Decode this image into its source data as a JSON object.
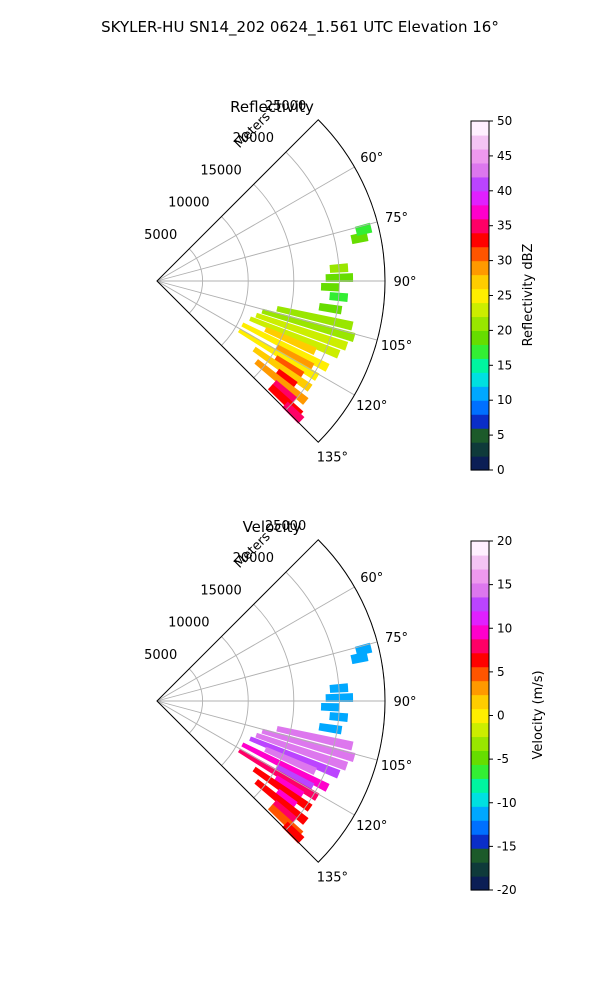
{
  "figure": {
    "title": "SKYLER-HU  SN14_202  0624_1.561 UTC Elevation 16°"
  },
  "chart_data": [
    {
      "type": "heatmap",
      "subtype": "polar-sector",
      "title": "Reflectivity",
      "radial_label": "Meters",
      "r_ticks": [
        5000,
        10000,
        15000,
        20000,
        25000
      ],
      "r_max": 25000,
      "theta_ticks": [
        "60°",
        "75°",
        "90°",
        "105°",
        "120°",
        "135°"
      ],
      "theta_values": [
        60,
        75,
        90,
        105,
        120,
        135
      ],
      "theta_range": [
        45,
        135
      ],
      "grid": true,
      "colorbar": {
        "label": "Reflectivity dBZ",
        "range": [
          0,
          50
        ],
        "ticks": [
          0,
          5,
          10,
          15,
          20,
          25,
          30,
          35,
          40,
          45,
          50
        ],
        "colors": [
          "#0b1e55",
          "#0f3a3a",
          "#1c5a2a",
          "#0a2ec8",
          "#0070ff",
          "#00a8ff",
          "#00e0e0",
          "#00f5a0",
          "#33ee33",
          "#66dd00",
          "#99e600",
          "#ccee00",
          "#ffee00",
          "#ffcc00",
          "#ff9900",
          "#ff5500",
          "#ff0000",
          "#ff0066",
          "#ff00cc",
          "#e020ff",
          "#bb44ff",
          "#dd77ee",
          "#ee99ee",
          "#f4c4f4",
          "#fff0ff"
        ]
      },
      "echoes": [
        {
          "az": 78,
          "r0": 21800,
          "r1": 23600,
          "v": 18
        },
        {
          "az": 76,
          "r0": 22500,
          "r1": 24200,
          "v": 16
        },
        {
          "az": 89,
          "r0": 18500,
          "r1": 21500,
          "v": 19
        },
        {
          "az": 86,
          "r0": 19000,
          "r1": 21000,
          "v": 20
        },
        {
          "az": 92,
          "r0": 18000,
          "r1": 20000,
          "v": 18
        },
        {
          "az": 95,
          "r0": 19000,
          "r1": 21000,
          "v": 17
        },
        {
          "az": 99,
          "r0": 18000,
          "r1": 20500,
          "v": 18
        },
        {
          "az": 103,
          "r0": 13500,
          "r1": 22000,
          "v": 20
        },
        {
          "az": 106,
          "r0": 12000,
          "r1": 22500,
          "v": 21
        },
        {
          "az": 109,
          "r0": 11500,
          "r1": 22000,
          "v": 22
        },
        {
          "az": 112,
          "r0": 11000,
          "r1": 21500,
          "v": 23
        },
        {
          "az": 114,
          "r0": 13000,
          "r1": 19000,
          "v": 26
        },
        {
          "az": 117,
          "r0": 10500,
          "r1": 21000,
          "v": 24
        },
        {
          "az": 119,
          "r0": 15000,
          "r1": 19500,
          "v": 28
        },
        {
          "az": 121,
          "r0": 10500,
          "r1": 20500,
          "v": 25
        },
        {
          "az": 123,
          "r0": 15500,
          "r1": 19000,
          "v": 30
        },
        {
          "az": 125,
          "r0": 13000,
          "r1": 20500,
          "v": 27
        },
        {
          "az": 127,
          "r0": 16500,
          "r1": 19000,
          "v": 33
        },
        {
          "az": 129,
          "r0": 14000,
          "r1": 21000,
          "v": 29
        },
        {
          "az": 131,
          "r0": 17000,
          "r1": 20000,
          "v": 34
        },
        {
          "az": 133,
          "r0": 17000,
          "r1": 21500,
          "v": 32
        },
        {
          "az": 134,
          "r0": 19500,
          "r1": 22000,
          "v": 35
        }
      ]
    },
    {
      "type": "heatmap",
      "subtype": "polar-sector",
      "title": "Velocity",
      "radial_label": "Meters",
      "r_ticks": [
        5000,
        10000,
        15000,
        20000,
        25000
      ],
      "r_max": 25000,
      "theta_ticks": [
        "60°",
        "75°",
        "90°",
        "105°",
        "120°",
        "135°"
      ],
      "theta_values": [
        60,
        75,
        90,
        105,
        120,
        135
      ],
      "theta_range": [
        45,
        135
      ],
      "grid": true,
      "colorbar": {
        "label": "Velocity (m/s)",
        "range": [
          -20,
          20
        ],
        "ticks": [
          -20,
          -15,
          -10,
          -5,
          0,
          5,
          10,
          15,
          20
        ],
        "colors": [
          "#0b1e55",
          "#0f3a3a",
          "#1c5a2a",
          "#0a2ec8",
          "#0070ff",
          "#00a8ff",
          "#00e0e0",
          "#00f5a0",
          "#33ee33",
          "#66dd00",
          "#99e600",
          "#ccee00",
          "#ffee00",
          "#ffcc00",
          "#ff9900",
          "#ff5500",
          "#ff0000",
          "#ff0066",
          "#ff00cc",
          "#e020ff",
          "#bb44ff",
          "#dd77ee",
          "#ee99ee",
          "#f4c4f4",
          "#fff0ff"
        ]
      },
      "echoes": [
        {
          "az": 78,
          "r0": 21800,
          "r1": 23600,
          "v": -12
        },
        {
          "az": 76,
          "r0": 22500,
          "r1": 24200,
          "v": -11
        },
        {
          "az": 89,
          "r0": 18500,
          "r1": 21500,
          "v": -12
        },
        {
          "az": 86,
          "r0": 19000,
          "r1": 21000,
          "v": -12
        },
        {
          "az": 92,
          "r0": 18000,
          "r1": 20000,
          "v": -11
        },
        {
          "az": 95,
          "r0": 19000,
          "r1": 21000,
          "v": -12
        },
        {
          "az": 99,
          "r0": 18000,
          "r1": 20500,
          "v": -12
        },
        {
          "az": 103,
          "r0": 13500,
          "r1": 22000,
          "v": 14
        },
        {
          "az": 106,
          "r0": 12000,
          "r1": 22500,
          "v": 15
        },
        {
          "az": 109,
          "r0": 11500,
          "r1": 22000,
          "v": 14
        },
        {
          "az": 112,
          "r0": 11000,
          "r1": 21500,
          "v": 12
        },
        {
          "az": 114,
          "r0": 13000,
          "r1": 19000,
          "v": 15
        },
        {
          "az": 117,
          "r0": 10500,
          "r1": 21000,
          "v": 10
        },
        {
          "az": 119,
          "r0": 15000,
          "r1": 19500,
          "v": 13
        },
        {
          "az": 121,
          "r0": 10500,
          "r1": 20500,
          "v": 8
        },
        {
          "az": 123,
          "r0": 15500,
          "r1": 19000,
          "v": 10
        },
        {
          "az": 125,
          "r0": 13000,
          "r1": 20500,
          "v": 7
        },
        {
          "az": 127,
          "r0": 16500,
          "r1": 19000,
          "v": 9
        },
        {
          "az": 129,
          "r0": 14000,
          "r1": 21000,
          "v": 6
        },
        {
          "az": 131,
          "r0": 17000,
          "r1": 20000,
          "v": 8
        },
        {
          "az": 133,
          "r0": 17000,
          "r1": 21500,
          "v": 5
        },
        {
          "az": 134,
          "r0": 19500,
          "r1": 22000,
          "v": 7
        }
      ]
    }
  ]
}
